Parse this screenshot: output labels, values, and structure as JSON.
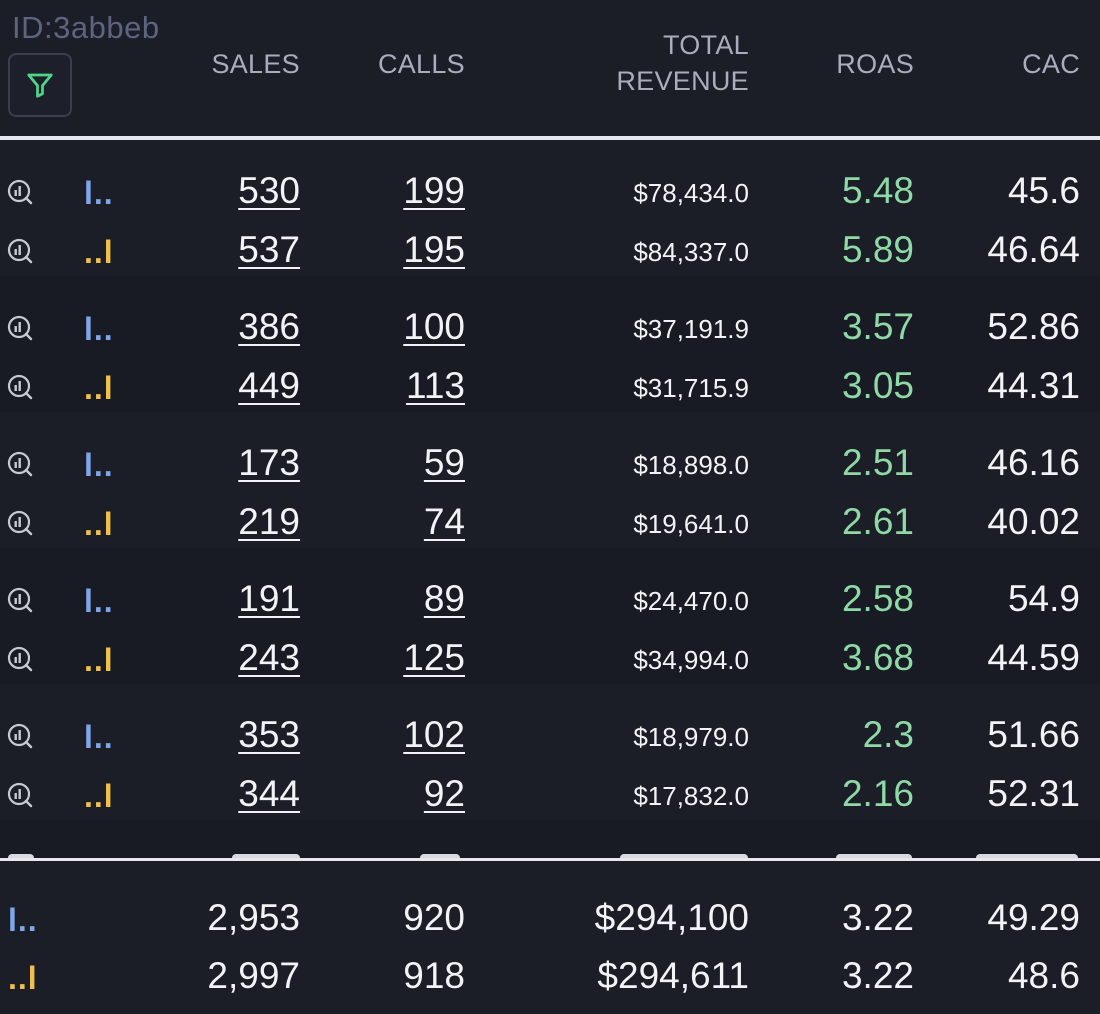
{
  "header": {
    "id_label": "ID:3abbeb",
    "columns": {
      "sales": "SALES",
      "calls": "CALLS",
      "total_revenue_line1": "TOTAL",
      "total_revenue_line2": "REVENUE",
      "roas": "ROAS",
      "cac": "CAC"
    }
  },
  "icons": {
    "filter": "filter-icon",
    "row_inspect": "inspect-chart-icon"
  },
  "colors": {
    "accent_green": "#8fd9a6",
    "tag_blue": "#7fa7ea",
    "tag_orange": "#f0c04c",
    "filter_green": "#4fd58a"
  },
  "groups": [
    {
      "rows": [
        {
          "tag": "l..",
          "sales": "530",
          "calls": "199",
          "revenue": "$78,434.0",
          "roas": "5.48",
          "cac": "45.6"
        },
        {
          "tag": "..l",
          "sales": "537",
          "calls": "195",
          "revenue": "$84,337.0",
          "roas": "5.89",
          "cac": "46.64"
        }
      ]
    },
    {
      "rows": [
        {
          "tag": "l..",
          "sales": "386",
          "calls": "100",
          "revenue": "$37,191.9",
          "roas": "3.57",
          "cac": "52.86"
        },
        {
          "tag": "..l",
          "sales": "449",
          "calls": "113",
          "revenue": "$31,715.9",
          "roas": "3.05",
          "cac": "44.31"
        }
      ]
    },
    {
      "rows": [
        {
          "tag": "l..",
          "sales": "173",
          "calls": "59",
          "revenue": "$18,898.0",
          "roas": "2.51",
          "cac": "46.16"
        },
        {
          "tag": "..l",
          "sales": "219",
          "calls": "74",
          "revenue": "$19,641.0",
          "roas": "2.61",
          "cac": "40.02"
        }
      ]
    },
    {
      "rows": [
        {
          "tag": "l..",
          "sales": "191",
          "calls": "89",
          "revenue": "$24,470.0",
          "roas": "2.58",
          "cac": "54.9"
        },
        {
          "tag": "..l",
          "sales": "243",
          "calls": "125",
          "revenue": "$34,994.0",
          "roas": "3.68",
          "cac": "44.59"
        }
      ]
    },
    {
      "rows": [
        {
          "tag": "l..",
          "sales": "353",
          "calls": "102",
          "revenue": "$18,979.0",
          "roas": "2.3",
          "cac": "51.66"
        },
        {
          "tag": "..l",
          "sales": "344",
          "calls": "92",
          "revenue": "$17,832.0",
          "roas": "2.16",
          "cac": "52.31"
        }
      ]
    }
  ],
  "totals": [
    {
      "tag": "l..",
      "sales": "2,953",
      "calls": "920",
      "revenue": "$294,100",
      "roas": "3.22",
      "cac": "49.29"
    },
    {
      "tag": "..l",
      "sales": "2,997",
      "calls": "918",
      "revenue": "$294,611",
      "roas": "3.22",
      "cac": "48.6"
    }
  ]
}
